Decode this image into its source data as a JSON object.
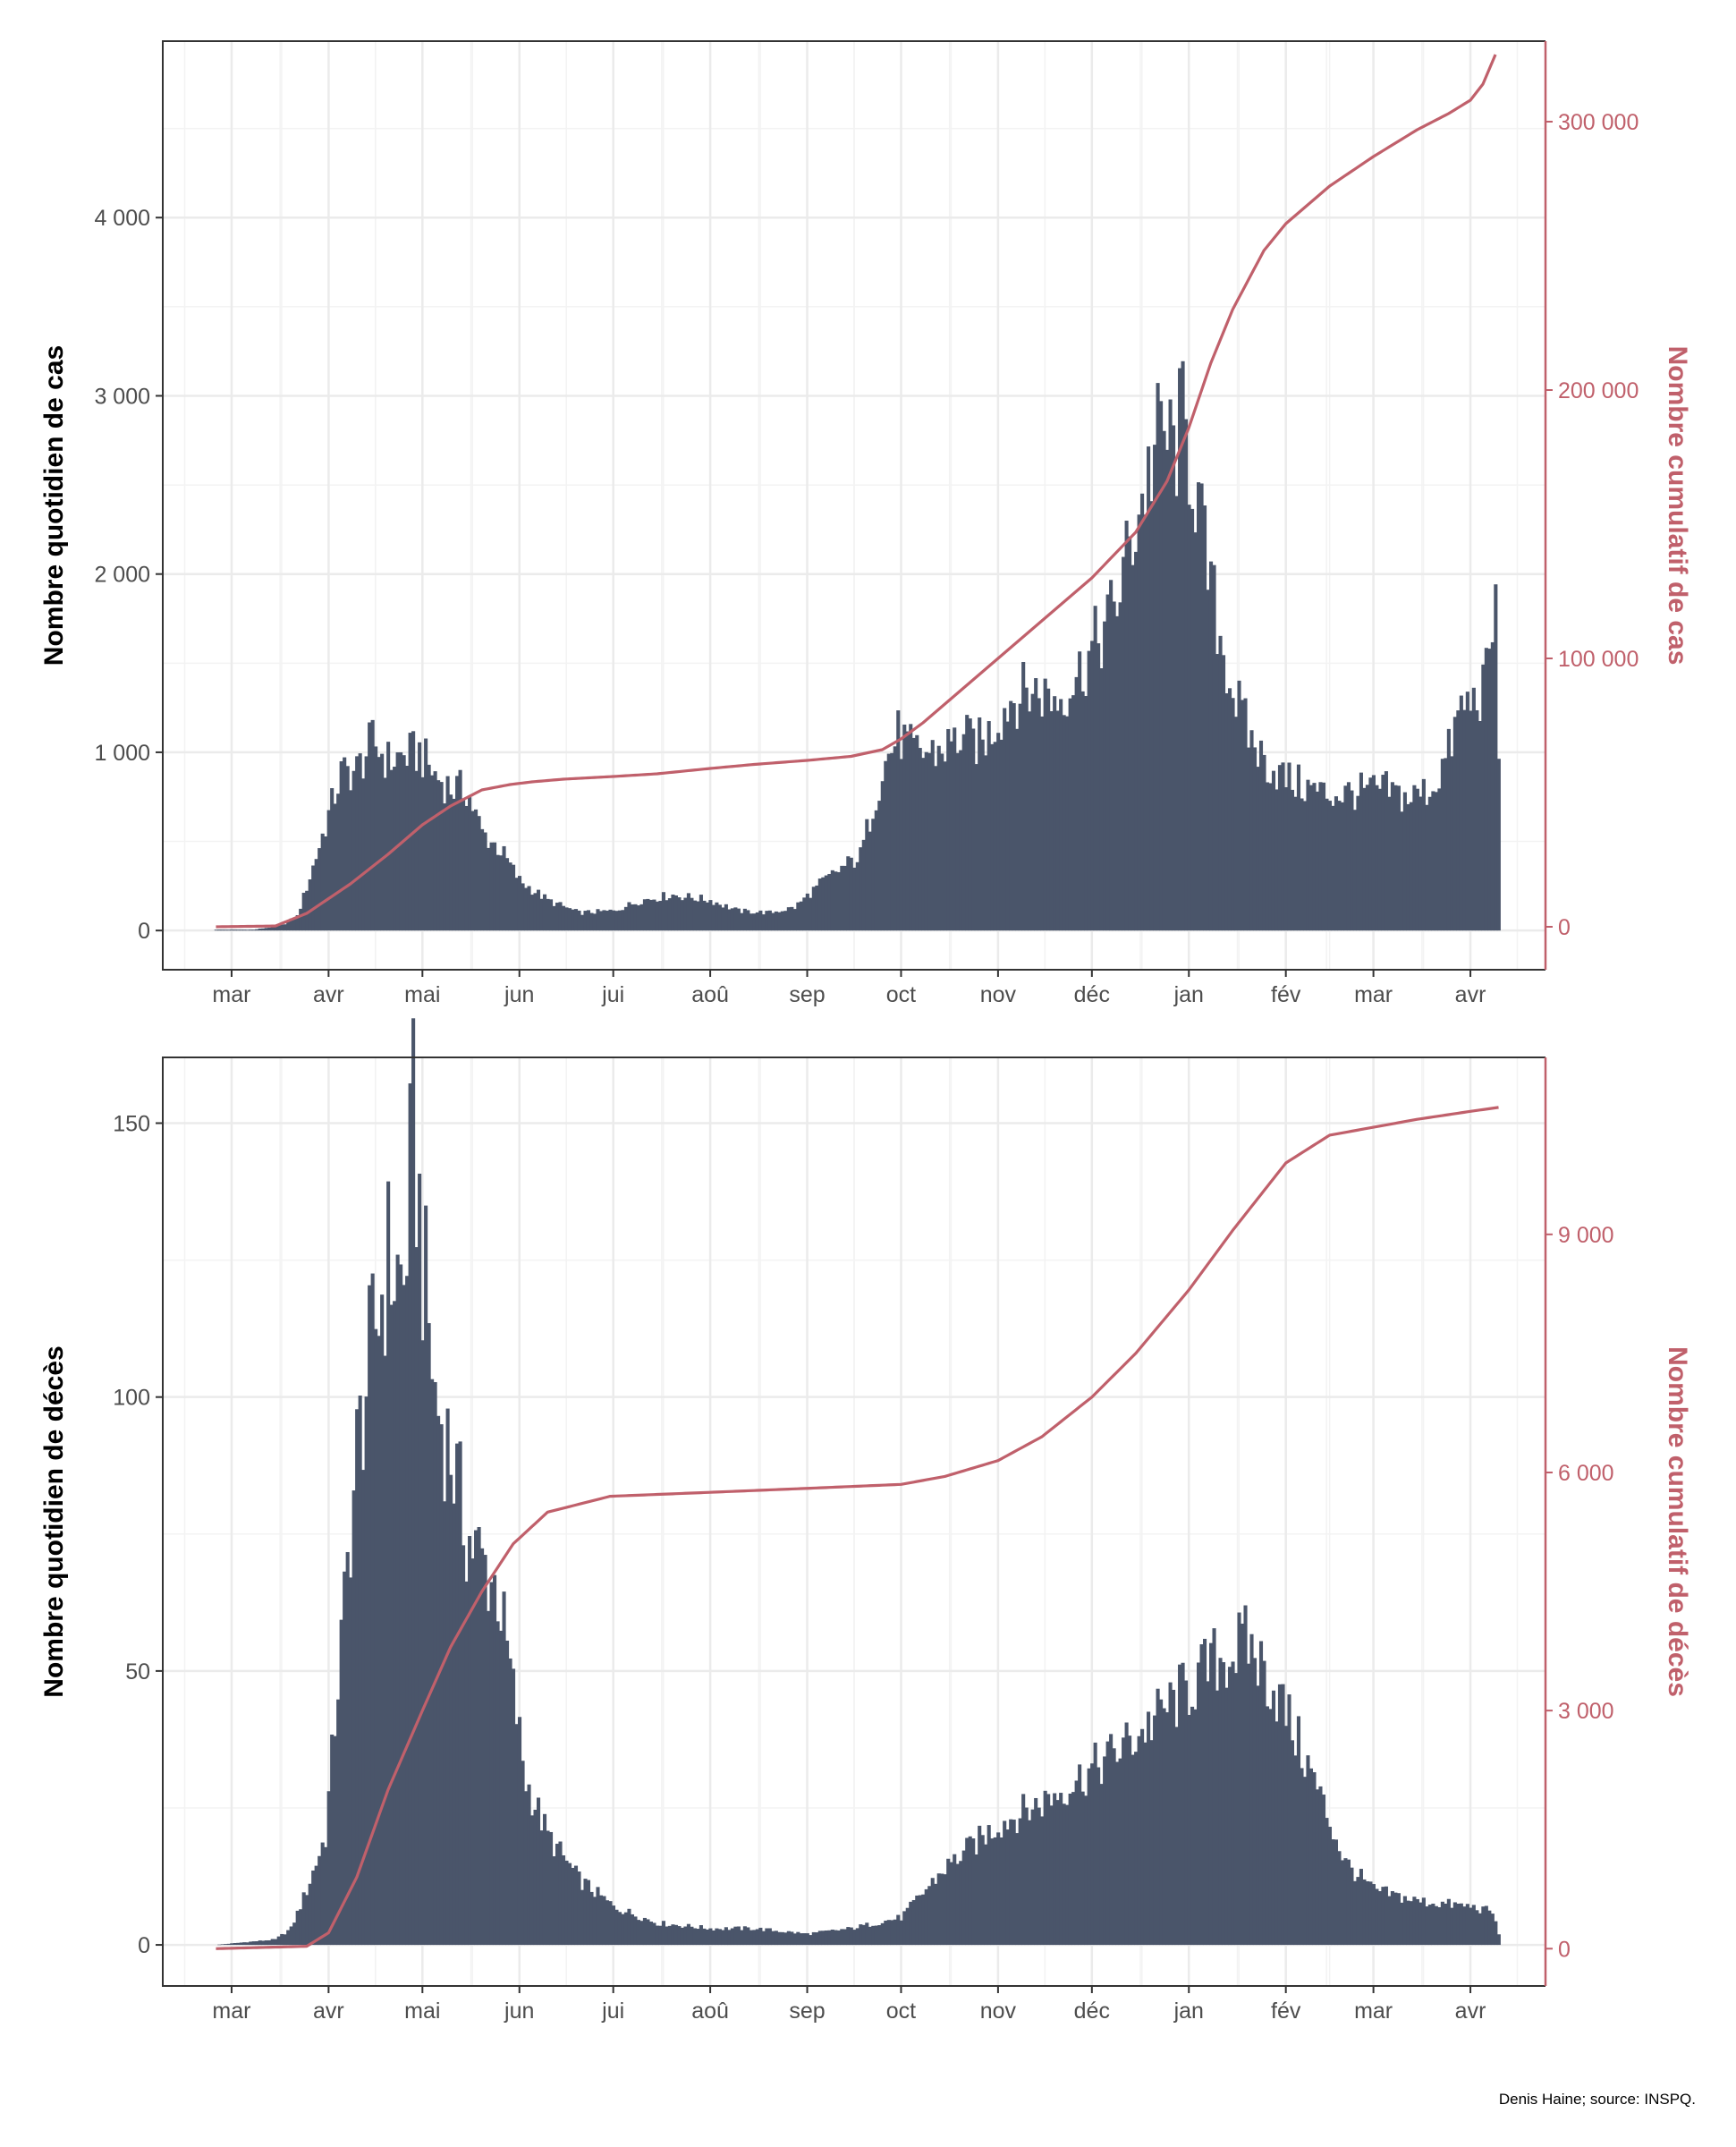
{
  "colors": {
    "bars": "#4a556a",
    "cumulative": "#c0606b",
    "grid_major": "#ebebeb",
    "grid_minor": "#f3f3f3",
    "panel_border": "#333333"
  },
  "caption": "Denis Haine; source: INSPQ.",
  "chart_data": [
    {
      "type": "bar",
      "y_axis_left_title": "Nombre quotidien de cas",
      "y_axis_right_title": "Nombre cumulatif de cas",
      "x_tick_labels": [
        "mar",
        "avr",
        "mai",
        "jun",
        "jui",
        "aoû",
        "sep",
        "oct",
        "nov",
        "déc",
        "jan",
        "fév",
        "mar",
        "avr"
      ],
      "x_ticks_start_of_month": [
        "2020-03-01",
        "2020-04-01",
        "2020-05-01",
        "2020-06-01",
        "2020-07-01",
        "2020-08-01",
        "2020-09-01",
        "2020-10-01",
        "2020-11-01",
        "2020-12-01",
        "2021-01-01",
        "2021-02-01",
        "2021-03-01",
        "2021-04-01"
      ],
      "x_range": [
        "2020-02-08",
        "2021-04-25"
      ],
      "y_left_range": [
        -220,
        4990
      ],
      "y_left_ticks": [
        0,
        1000,
        2000,
        3000,
        4000
      ],
      "y_left_tick_labels": [
        "0",
        "1 000",
        "2 000",
        "3 000",
        "4 000"
      ],
      "y_right_range": [
        -16000,
        330000
      ],
      "y_right_ticks": [
        0,
        100000,
        200000,
        300000
      ],
      "y_right_tick_labels": [
        "0",
        "100 000",
        "200 000",
        "300 000"
      ],
      "grid": "major and minor",
      "daily_series_anchors": {
        "dates": [
          "2020-02-25",
          "2020-03-08",
          "2020-03-12",
          "2020-03-17",
          "2020-03-22",
          "2020-03-26",
          "2020-04-01",
          "2020-04-05",
          "2020-04-10",
          "2020-04-15",
          "2020-04-20",
          "2020-04-25",
          "2020-04-30",
          "2020-05-05",
          "2020-05-10",
          "2020-05-15",
          "2020-05-20",
          "2020-05-26",
          "2020-06-01",
          "2020-06-10",
          "2020-06-20",
          "2020-07-01",
          "2020-07-10",
          "2020-07-20",
          "2020-08-01",
          "2020-08-10",
          "2020-08-20",
          "2020-08-28",
          "2020-09-05",
          "2020-09-12",
          "2020-09-18",
          "2020-09-22",
          "2020-09-25",
          "2020-09-30",
          "2020-10-05",
          "2020-10-12",
          "2020-10-20",
          "2020-10-27",
          "2020-11-05",
          "2020-11-12",
          "2020-11-20",
          "2020-11-27",
          "2020-12-02",
          "2020-12-08",
          "2020-12-13",
          "2020-12-18",
          "2020-12-23",
          "2020-12-27",
          "2020-12-30",
          "2021-01-03",
          "2021-01-07",
          "2021-01-11",
          "2021-01-15",
          "2021-01-20",
          "2021-01-25",
          "2021-02-01",
          "2021-02-08",
          "2021-02-15",
          "2021-02-25",
          "2021-03-05",
          "2021-03-12",
          "2021-03-20",
          "2021-03-25",
          "2021-03-29",
          "2021-04-02",
          "2021-04-06",
          "2021-04-08",
          "2021-04-09",
          "2021-04-10"
        ],
        "values": [
          5,
          5,
          15,
          30,
          80,
          300,
          650,
          880,
          900,
          1060,
          950,
          980,
          1000,
          870,
          800,
          790,
          550,
          450,
          280,
          170,
          100,
          110,
          170,
          200,
          170,
          110,
          100,
          130,
          260,
          350,
          420,
          700,
          900,
          1100,
          1000,
          1000,
          1080,
          1050,
          1300,
          1350,
          1300,
          1450,
          1600,
          1800,
          2150,
          2500,
          2800,
          2700,
          2850,
          2500,
          2000,
          1650,
          1350,
          1100,
          950,
          850,
          800,
          760,
          780,
          790,
          740,
          800,
          1000,
          1250,
          1280,
          1400,
          1700,
          1800,
          1000
        ]
      },
      "cumulative_series_anchors": {
        "dates": [
          "2020-02-25",
          "2020-03-15",
          "2020-03-25",
          "2020-04-08",
          "2020-04-20",
          "2020-05-01",
          "2020-05-10",
          "2020-05-20",
          "2020-05-29",
          "2020-06-05",
          "2020-06-15",
          "2020-07-01",
          "2020-07-15",
          "2020-08-01",
          "2020-08-15",
          "2020-09-01",
          "2020-09-15",
          "2020-09-25",
          "2020-10-01",
          "2020-10-08",
          "2020-10-15",
          "2020-11-01",
          "2020-11-15",
          "2020-12-01",
          "2020-12-15",
          "2020-12-25",
          "2021-01-01",
          "2021-01-08",
          "2021-01-15",
          "2021-01-25",
          "2021-02-01",
          "2021-02-15",
          "2021-03-01",
          "2021-03-15",
          "2021-03-25",
          "2021-04-01",
          "2021-04-05",
          "2021-04-09"
        ],
        "values": [
          0,
          300,
          5000,
          16000,
          27000,
          38000,
          45000,
          51000,
          53000,
          54000,
          55000,
          56000,
          57000,
          59000,
          60500,
          62000,
          63500,
          66000,
          70000,
          76000,
          83000,
          100000,
          114000,
          130000,
          147000,
          166000,
          186000,
          210000,
          230000,
          252000,
          262000,
          276000,
          287000,
          297000,
          303000,
          308000,
          314000,
          325000
        ]
      }
    },
    {
      "type": "bar",
      "y_axis_left_title": "Nombre quotidien de décès",
      "y_axis_right_title": "Nombre cumulatif de décès",
      "x_tick_labels": [
        "mar",
        "avr",
        "mai",
        "jun",
        "jui",
        "aoû",
        "sep",
        "oct",
        "nov",
        "déc",
        "jan",
        "fév",
        "mar",
        "avr"
      ],
      "x_ticks_start_of_month": [
        "2020-03-01",
        "2020-04-01",
        "2020-05-01",
        "2020-06-01",
        "2020-07-01",
        "2020-08-01",
        "2020-09-01",
        "2020-10-01",
        "2020-11-01",
        "2020-12-01",
        "2021-01-01",
        "2021-02-01",
        "2021-03-01",
        "2021-04-01"
      ],
      "x_range": [
        "2020-02-08",
        "2021-04-25"
      ],
      "y_left_range": [
        -7.5,
        162
      ],
      "y_left_ticks": [
        0,
        50,
        100,
        150
      ],
      "y_left_tick_labels": [
        "0",
        "50",
        "100",
        "150"
      ],
      "y_right_range": [
        -470,
        11230
      ],
      "y_right_ticks": [
        0,
        3000,
        6000,
        9000
      ],
      "y_right_tick_labels": [
        "0",
        "3 000",
        "6 000",
        "9 000"
      ],
      "grid": "major and minor",
      "daily_series_anchors": {
        "dates": [
          "2020-02-25",
          "2020-03-15",
          "2020-03-20",
          "2020-03-25",
          "2020-03-31",
          "2020-04-05",
          "2020-04-10",
          "2020-04-15",
          "2020-04-20",
          "2020-04-25",
          "2020-04-28",
          "2020-05-01",
          "2020-05-05",
          "2020-05-10",
          "2020-05-15",
          "2020-05-20",
          "2020-05-25",
          "2020-05-29",
          "2020-06-03",
          "2020-06-10",
          "2020-06-20",
          "2020-07-01",
          "2020-07-15",
          "2020-08-01",
          "2020-08-15",
          "2020-09-01",
          "2020-09-15",
          "2020-10-01",
          "2020-10-15",
          "2020-11-01",
          "2020-11-15",
          "2020-12-01",
          "2020-12-15",
          "2021-01-01",
          "2021-01-10",
          "2021-01-20",
          "2021-01-30",
          "2021-02-10",
          "2021-02-20",
          "2021-03-01",
          "2021-03-15",
          "2021-04-01",
          "2021-04-08",
          "2021-04-10"
        ],
        "values": [
          0,
          1,
          3,
          10,
          20,
          55,
          90,
          110,
          125,
          120,
          150,
          125,
          100,
          90,
          75,
          70,
          65,
          50,
          30,
          20,
          12,
          7,
          4,
          3,
          3,
          2,
          3,
          5,
          14,
          22,
          26,
          32,
          38,
          47,
          52,
          55,
          45,
          30,
          15,
          10,
          8,
          7,
          6,
          2
        ]
      },
      "cumulative_series_anchors": {
        "dates": [
          "2020-02-25",
          "2020-03-25",
          "2020-04-01",
          "2020-04-10",
          "2020-04-20",
          "2020-05-01",
          "2020-05-10",
          "2020-05-20",
          "2020-05-30",
          "2020-06-10",
          "2020-06-30",
          "2020-08-01",
          "2020-09-01",
          "2020-10-01",
          "2020-10-15",
          "2020-11-01",
          "2020-11-15",
          "2020-12-01",
          "2020-12-15",
          "2021-01-01",
          "2021-01-15",
          "2021-02-01",
          "2021-02-15",
          "2021-03-01",
          "2021-03-15",
          "2021-04-01",
          "2021-04-10"
        ],
        "values": [
          0,
          30,
          200,
          900,
          2000,
          3000,
          3800,
          4500,
          5100,
          5500,
          5700,
          5750,
          5800,
          5850,
          5950,
          6150,
          6450,
          6950,
          7500,
          8300,
          9050,
          9900,
          10250,
          10350,
          10450,
          10550,
          10600
        ]
      }
    }
  ]
}
